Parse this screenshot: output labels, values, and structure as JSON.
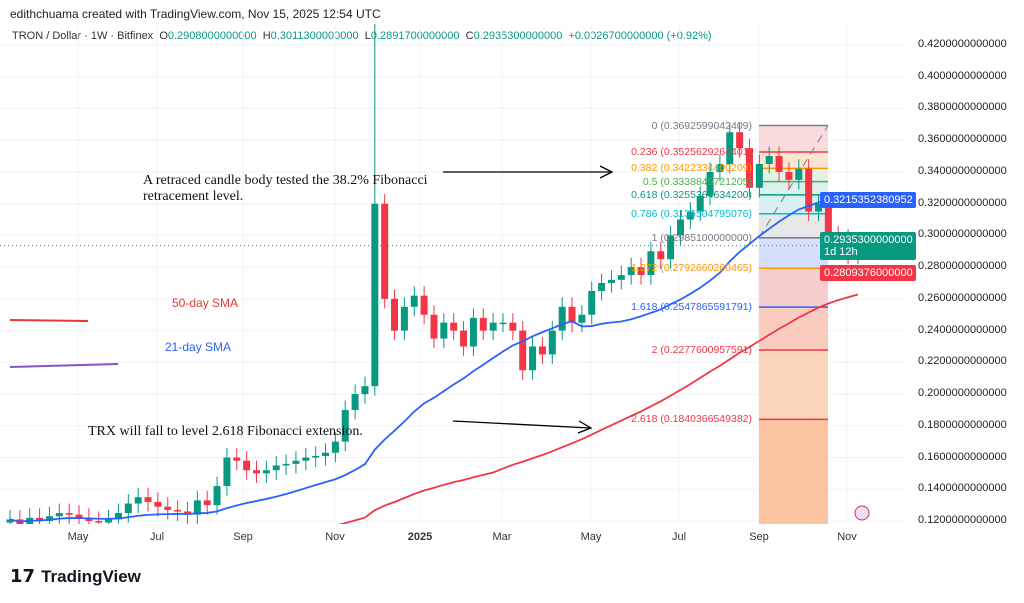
{
  "credit": "edithchuama created with TradingView.com, Nov 15, 2025 12:54 UTC",
  "legend": {
    "symbol": "TRON / Dollar · 1W · Bitfinex",
    "o_label": "O",
    "o": "0.2908000000000",
    "h_label": "H",
    "h": "0.3011300000000",
    "l_label": "L",
    "l": "0.2891700000000",
    "c_label": "C",
    "c": "0.2935300000000",
    "change": "+0.0026700000000 (+0.92%)"
  },
  "y_axis": [
    "0.4200000000000",
    "0.4000000000000",
    "0.3800000000000",
    "0.3600000000000",
    "0.3400000000000",
    "0.3200000000000",
    "0.3000000000000",
    "0.2800000000000",
    "0.2600000000000",
    "0.2400000000000",
    "0.2200000000000",
    "0.2000000000000",
    "0.1800000000000",
    "0.1600000000000",
    "0.1400000000000",
    "0.1200000000000"
  ],
  "x_axis": [
    "May",
    "Jul",
    "Sep",
    "Nov",
    "2025",
    "Mar",
    "May",
    "Jul",
    "Sep",
    "Nov"
  ],
  "price_labels": {
    "sma21": "0.3215352380952",
    "last": "0.2935300000000",
    "countdown": "1d 12h",
    "sma50": "0.2809376000000"
  },
  "colors": {
    "up": "#089981",
    "down": "#f23645",
    "sma21": "#2962ff",
    "sma50": "#f23645"
  },
  "closes": [
    0.121,
    0.118,
    0.122,
    0.12,
    0.123,
    0.125,
    0.124,
    0.122,
    0.12,
    0.119,
    0.121,
    0.125,
    0.131,
    0.135,
    0.132,
    0.129,
    0.127,
    0.126,
    0.124,
    0.133,
    0.13,
    0.142,
    0.16,
    0.158,
    0.152,
    0.15,
    0.152,
    0.155,
    0.156,
    0.158,
    0.16,
    0.161,
    0.163,
    0.17,
    0.19,
    0.2,
    0.205,
    0.32,
    0.26,
    0.24,
    0.255,
    0.262,
    0.25,
    0.235,
    0.245,
    0.24,
    0.23,
    0.248,
    0.24,
    0.245,
    0.245,
    0.24,
    0.215,
    0.23,
    0.225,
    0.24,
    0.255,
    0.245,
    0.25,
    0.265,
    0.27,
    0.272,
    0.275,
    0.28,
    0.275,
    0.29,
    0.285,
    0.3,
    0.31,
    0.315,
    0.325,
    0.34,
    0.345,
    0.365,
    0.355,
    0.33,
    0.345,
    0.35,
    0.34,
    0.335,
    0.342,
    0.315,
    0.32,
    0.3,
    0.298,
    0.288,
    0.2935
  ],
  "fib": [
    {
      "ratio": "0",
      "text": "0 (0.3692599042409)",
      "value": 0.3692599042409,
      "color": "#787b86"
    },
    {
      "ratio": "0.236",
      "text": "0.236 (0.3525629264401)",
      "value": 0.3525629264401,
      "color": "#f23645"
    },
    {
      "ratio": "0.382",
      "text": "0.382 (0.3422334409209)",
      "value": 0.3422334409209,
      "color": "#ff9800"
    },
    {
      "ratio": "0.5",
      "text": "0.5 (0.3338849721205)",
      "value": 0.3338849721205,
      "color": "#4caf50"
    },
    {
      "ratio": "0.618",
      "text": "0.618 (0.3255364634200)",
      "value": 0.32553646342,
      "color": "#089981"
    },
    {
      "ratio": "0.786",
      "text": "0.786 (0.3136504795076)",
      "value": 0.3136504795076,
      "color": "#00bcd4"
    },
    {
      "ratio": "1",
      "text": "1 (0.2985100000000)",
      "value": 0.29851,
      "color": "#787b86"
    },
    {
      "ratio": "1.272",
      "text": "1.272 (0.2792660260465)",
      "value": 0.2792660260465,
      "color": "#ff9800"
    },
    {
      "ratio": "1.618",
      "text": "1.618 (0.2547865591791)",
      "value": 0.2547865591791,
      "color": "#2962ff"
    },
    {
      "ratio": "2",
      "text": "2 (0.2277600957591)",
      "value": 0.2277600957591,
      "color": "#f23645"
    },
    {
      "ratio": "2.618",
      "text": "2.618 (0.1840366549382)",
      "value": 0.1840366549382,
      "color": "#f23645"
    }
  ],
  "annotations": {
    "retrace": "A retraced candle body tested the 38.2% Fibonacci retracement level.",
    "fall": "TRX will fall to level 2.618 Fibonacci extension.",
    "sma50": "50-day SMA",
    "sma21": "21-day SMA"
  },
  "brand": "TradingView"
}
